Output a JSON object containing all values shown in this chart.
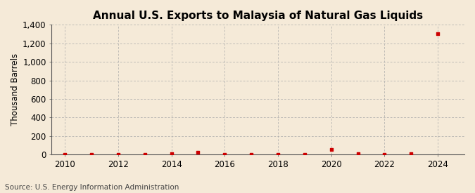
{
  "title": "Annual U.S. Exports to Malaysia of Natural Gas Liquids",
  "ylabel": "Thousand Barrels",
  "source": "Source: U.S. Energy Information Administration",
  "background_color": "#f5ead8",
  "plot_background_color": "#f5ead8",
  "grid_color": "#aaaaaa",
  "marker_color": "#cc0000",
  "x_data": [
    2010,
    2011,
    2012,
    2013,
    2014,
    2015,
    2016,
    2017,
    2018,
    2019,
    2020,
    2021,
    2022,
    2023,
    2024
  ],
  "y_data": [
    0,
    2,
    2,
    3,
    8,
    20,
    2,
    2,
    2,
    2,
    55,
    10,
    2,
    10,
    1305
  ],
  "xlim": [
    2009.5,
    2025.0
  ],
  "ylim": [
    0,
    1400
  ],
  "yticks": [
    0,
    200,
    400,
    600,
    800,
    1000,
    1200,
    1400
  ],
  "ytick_labels": [
    "0",
    "200",
    "400",
    "600",
    "800",
    "1,000",
    "1,200",
    "1,400"
  ],
  "xticks": [
    2010,
    2012,
    2014,
    2016,
    2018,
    2020,
    2022,
    2024
  ],
  "title_fontsize": 11,
  "label_fontsize": 8.5,
  "tick_fontsize": 8.5,
  "source_fontsize": 7.5
}
